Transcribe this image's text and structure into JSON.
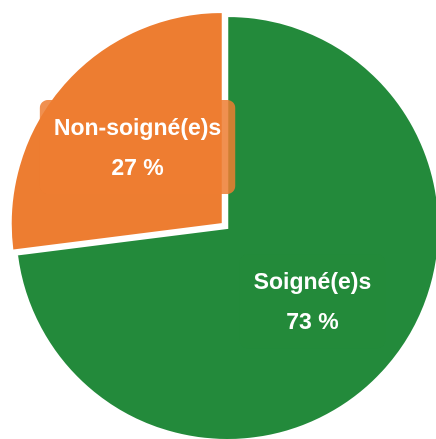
{
  "chart_data": {
    "type": "pie",
    "categories": [
      "Soigné(e)s",
      "Non-soigné(e)s"
    ],
    "values": [
      73,
      27
    ],
    "value_labels": [
      "73 %",
      "27 %"
    ],
    "colors": [
      "#238a3b",
      "#ed7d31"
    ]
  }
}
